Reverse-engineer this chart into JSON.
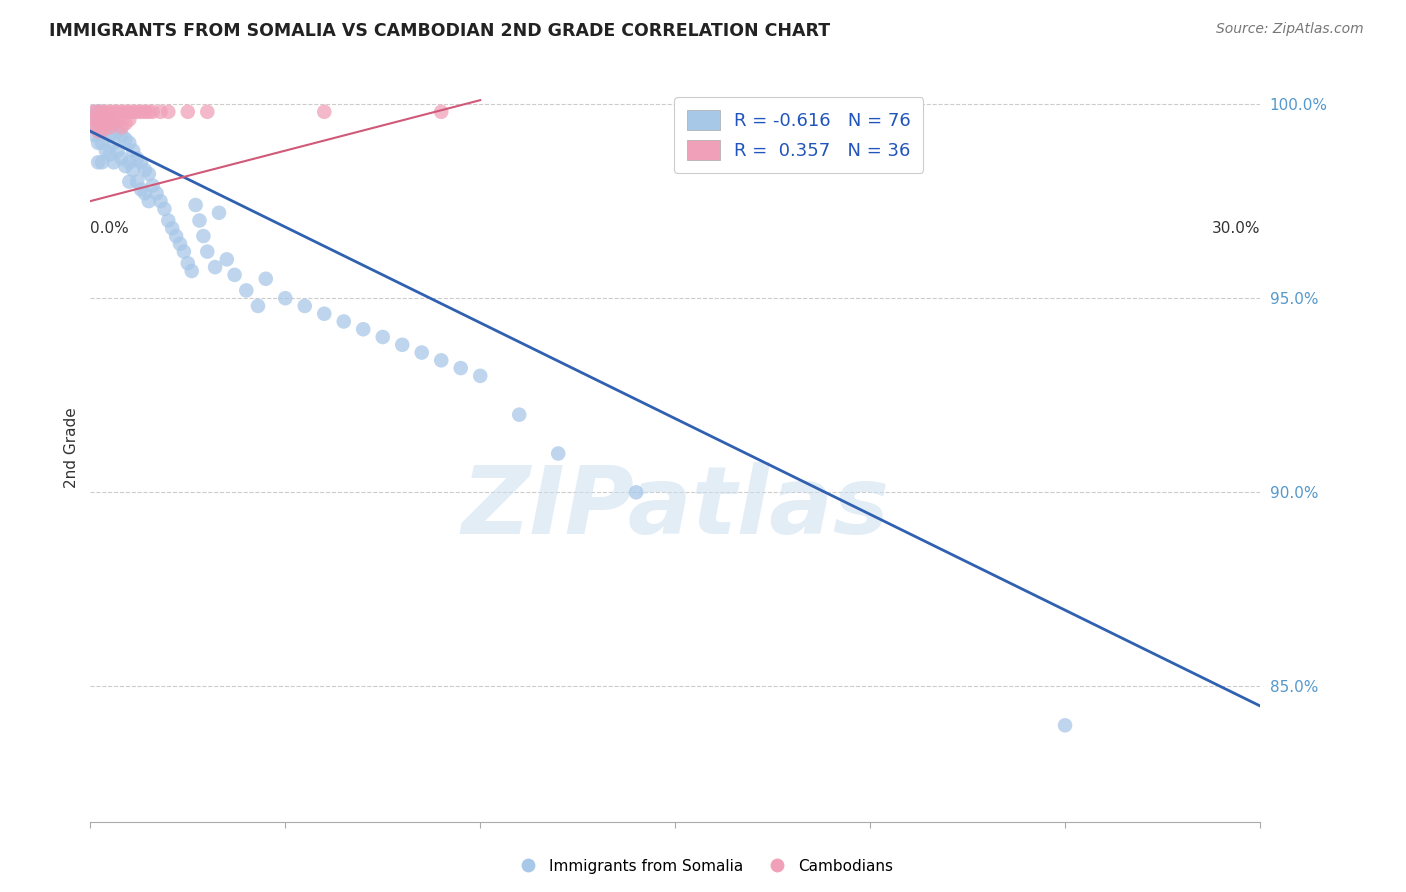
{
  "title": "IMMIGRANTS FROM SOMALIA VS CAMBODIAN 2ND GRADE CORRELATION CHART",
  "source": "Source: ZipAtlas.com",
  "ylabel": "2nd Grade",
  "xlim": [
    0.0,
    0.3
  ],
  "ylim": [
    0.815,
    1.008
  ],
  "watermark": "ZIPatlas",
  "legend_blue_r": "-0.616",
  "legend_blue_n": "76",
  "legend_pink_r": "0.357",
  "legend_pink_n": "36",
  "blue_color": "#a8c8e8",
  "blue_line_color": "#3060b0",
  "pink_color": "#f0a0b8",
  "pink_line_color": "#d05878",
  "grid_color": "#cccccc",
  "somalia_x": [
    0.001,
    0.001,
    0.001,
    0.002,
    0.002,
    0.002,
    0.002,
    0.003,
    0.003,
    0.003,
    0.003,
    0.004,
    0.004,
    0.004,
    0.005,
    0.005,
    0.005,
    0.006,
    0.006,
    0.006,
    0.007,
    0.007,
    0.008,
    0.008,
    0.009,
    0.009,
    0.01,
    0.01,
    0.01,
    0.011,
    0.011,
    0.012,
    0.012,
    0.013,
    0.013,
    0.014,
    0.014,
    0.015,
    0.015,
    0.016,
    0.017,
    0.018,
    0.019,
    0.02,
    0.021,
    0.022,
    0.023,
    0.024,
    0.025,
    0.026,
    0.027,
    0.028,
    0.029,
    0.03,
    0.032,
    0.033,
    0.035,
    0.037,
    0.04,
    0.043,
    0.045,
    0.05,
    0.055,
    0.06,
    0.065,
    0.07,
    0.075,
    0.08,
    0.085,
    0.09,
    0.095,
    0.1,
    0.11,
    0.12,
    0.14,
    0.25
  ],
  "somalia_y": [
    0.998,
    0.995,
    0.992,
    0.998,
    0.995,
    0.99,
    0.985,
    0.998,
    0.995,
    0.99,
    0.985,
    0.997,
    0.993,
    0.988,
    0.996,
    0.992,
    0.987,
    0.995,
    0.99,
    0.985,
    0.993,
    0.988,
    0.992,
    0.986,
    0.991,
    0.984,
    0.99,
    0.985,
    0.98,
    0.988,
    0.983,
    0.986,
    0.98,
    0.985,
    0.978,
    0.983,
    0.977,
    0.982,
    0.975,
    0.979,
    0.977,
    0.975,
    0.973,
    0.97,
    0.968,
    0.966,
    0.964,
    0.962,
    0.959,
    0.957,
    0.974,
    0.97,
    0.966,
    0.962,
    0.958,
    0.972,
    0.96,
    0.956,
    0.952,
    0.948,
    0.955,
    0.95,
    0.948,
    0.946,
    0.944,
    0.942,
    0.94,
    0.938,
    0.936,
    0.934,
    0.932,
    0.93,
    0.92,
    0.91,
    0.9,
    0.84
  ],
  "cambodian_x": [
    0.001,
    0.001,
    0.001,
    0.002,
    0.002,
    0.002,
    0.003,
    0.003,
    0.003,
    0.004,
    0.004,
    0.005,
    0.005,
    0.005,
    0.006,
    0.006,
    0.007,
    0.007,
    0.008,
    0.008,
    0.009,
    0.009,
    0.01,
    0.01,
    0.011,
    0.012,
    0.013,
    0.014,
    0.015,
    0.016,
    0.018,
    0.02,
    0.025,
    0.03,
    0.06,
    0.09
  ],
  "cambodian_y": [
    0.998,
    0.996,
    0.994,
    0.998,
    0.996,
    0.993,
    0.998,
    0.996,
    0.993,
    0.998,
    0.995,
    0.998,
    0.996,
    0.994,
    0.998,
    0.995,
    0.998,
    0.996,
    0.998,
    0.994,
    0.998,
    0.995,
    0.998,
    0.996,
    0.998,
    0.998,
    0.998,
    0.998,
    0.998,
    0.998,
    0.998,
    0.998,
    0.998,
    0.998,
    0.998,
    0.998
  ],
  "blue_trend_x": [
    0.0,
    0.3
  ],
  "blue_trend_y": [
    0.993,
    0.845
  ],
  "pink_trend_x": [
    0.0,
    0.1
  ],
  "pink_trend_y": [
    0.975,
    1.001
  ]
}
